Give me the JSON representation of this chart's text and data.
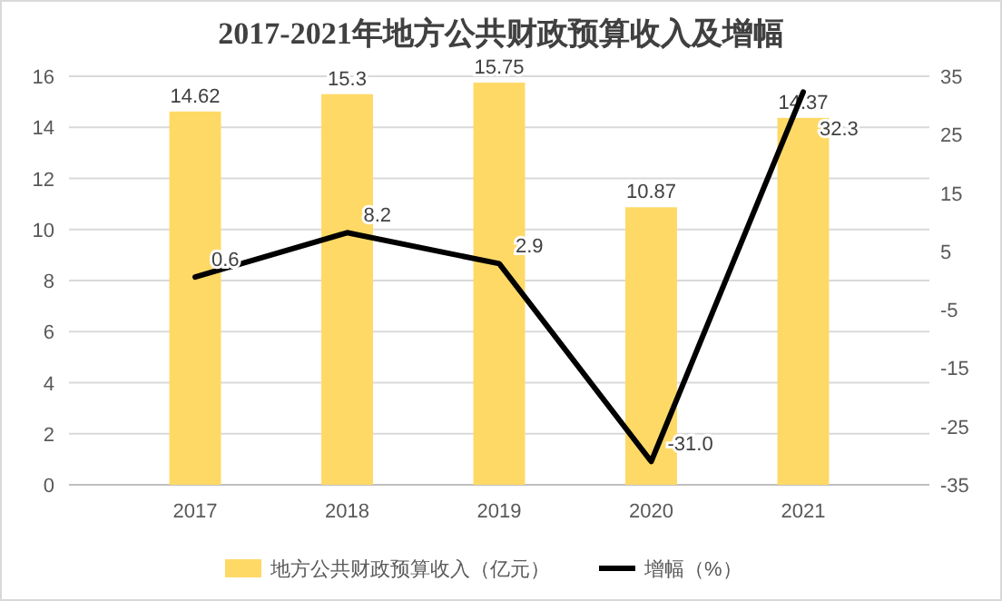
{
  "chart_data": {
    "type": "bar",
    "title": "2017-2021年地方公共财政预算收入及增幅",
    "categories": [
      "2017",
      "2018",
      "2019",
      "2020",
      "2021"
    ],
    "series": [
      {
        "name": "地方公共财政预算收入（亿元）",
        "color": "#ffd966",
        "values": [
          14.62,
          15.3,
          15.75,
          10.87,
          14.37
        ],
        "value_labels": [
          "14.62",
          "15.3",
          "15.75",
          "10.87",
          "14.37"
        ]
      },
      {
        "name": "增幅（%）",
        "type": "line",
        "axis": "y2",
        "color": "#000000",
        "values": [
          0.6,
          8.2,
          2.9,
          -31.0,
          32.3
        ],
        "value_labels": [
          "0.6",
          "8.2",
          "2.9",
          "-31.0",
          "32.3"
        ]
      }
    ],
    "ylim": [
      0,
      16
    ],
    "yticks": [
      0,
      2,
      4,
      6,
      8,
      10,
      12,
      14,
      16
    ],
    "y2lim": [
      -35,
      35
    ],
    "y2ticks": [
      -35,
      -25,
      -15,
      -5,
      5,
      15,
      25,
      35
    ],
    "grid": "y",
    "legend": "bottom",
    "marker": "none",
    "line_style": "solid"
  }
}
